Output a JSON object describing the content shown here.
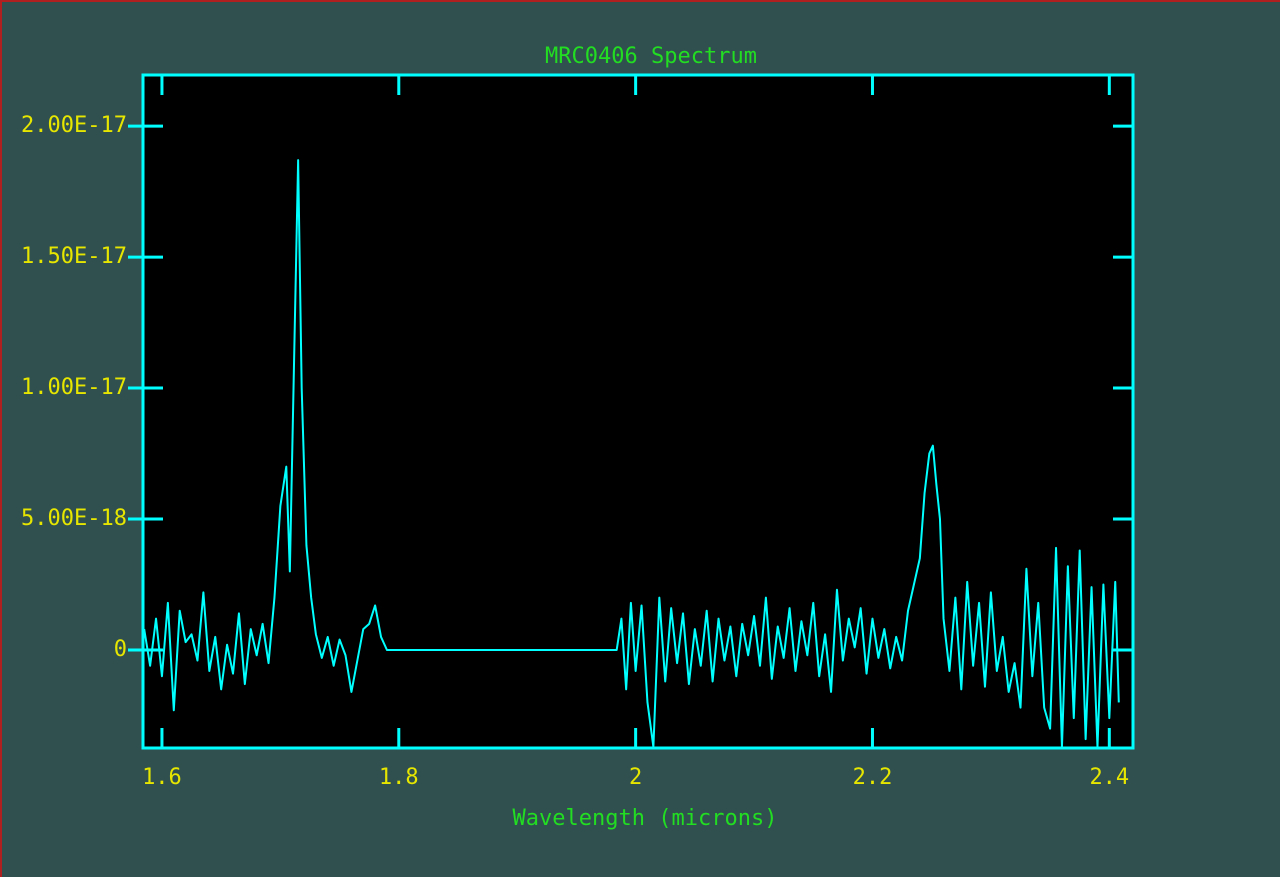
{
  "chart_data": {
    "type": "line",
    "title": "MRC0406 Spectrum",
    "x_label": "Wavelength (microns)",
    "color": "#00ffff",
    "xlim": [
      1.584,
      2.42
    ],
    "ylim": [
      -3.74e-18,
      2.195e-17
    ],
    "xticks": [
      1.6,
      1.8,
      2,
      2.2,
      2.4
    ],
    "yticks": [
      0,
      {
        "value": 5e-18,
        "label": "5.00E-18"
      },
      {
        "value": 1e-17,
        "label": "1.00E-17"
      },
      {
        "value": 1.5e-17,
        "label": "1.50E-17"
      },
      {
        "value": 2e-17,
        "label": "2.00E-17"
      }
    ],
    "grid": false,
    "x": [
      1.585,
      1.59,
      1.595,
      1.6,
      1.605,
      1.61,
      1.615,
      1.62,
      1.625,
      1.63,
      1.635,
      1.64,
      1.645,
      1.65,
      1.655,
      1.66,
      1.665,
      1.67,
      1.675,
      1.68,
      1.685,
      1.69,
      1.695,
      1.7,
      1.705,
      1.708,
      1.712,
      1.715,
      1.718,
      1.722,
      1.726,
      1.73,
      1.735,
      1.74,
      1.745,
      1.75,
      1.755,
      1.76,
      1.765,
      1.77,
      1.775,
      1.78,
      1.785,
      1.79,
      1.85,
      1.92,
      1.984,
      1.988,
      1.992,
      1.996,
      2.0,
      2.005,
      2.01,
      2.015,
      2.02,
      2.025,
      2.03,
      2.035,
      2.04,
      2.045,
      2.05,
      2.055,
      2.06,
      2.065,
      2.07,
      2.075,
      2.08,
      2.085,
      2.09,
      2.095,
      2.1,
      2.105,
      2.11,
      2.115,
      2.12,
      2.125,
      2.13,
      2.135,
      2.14,
      2.145,
      2.15,
      2.155,
      2.16,
      2.165,
      2.17,
      2.175,
      2.18,
      2.185,
      2.19,
      2.195,
      2.2,
      2.205,
      2.21,
      2.215,
      2.22,
      2.225,
      2.23,
      2.235,
      2.24,
      2.244,
      2.248,
      2.251,
      2.254,
      2.257,
      2.26,
      2.265,
      2.27,
      2.275,
      2.28,
      2.285,
      2.29,
      2.295,
      2.3,
      2.305,
      2.31,
      2.315,
      2.32,
      2.325,
      2.33,
      2.335,
      2.34,
      2.345,
      2.35,
      2.355,
      2.36,
      2.365,
      2.37,
      2.375,
      2.38,
      2.385,
      2.39,
      2.395,
      2.4,
      2.405,
      2.408
    ],
    "values": [
      8e-19,
      -6e-19,
      1.2e-18,
      -1e-18,
      1.8e-18,
      -2.3e-18,
      1.5e-18,
      3e-19,
      6e-19,
      -4e-19,
      2.2e-18,
      -8e-19,
      5e-19,
      -1.5e-18,
      2e-19,
      -9e-19,
      1.4e-18,
      -1.3e-18,
      8e-19,
      -2e-19,
      1e-18,
      -5e-19,
      2e-18,
      5.5e-18,
      7e-18,
      3e-18,
      1.2e-17,
      1.87e-17,
      1e-17,
      4e-18,
      2e-18,
      6e-19,
      -3e-19,
      5e-19,
      -6e-19,
      4e-19,
      -2e-19,
      -1.6e-18,
      -4e-19,
      8e-19,
      1e-18,
      1.7e-18,
      5e-19,
      0,
      0,
      0,
      0,
      1.2e-18,
      -1.5e-18,
      1.8e-18,
      -8e-19,
      1.7e-18,
      -2e-18,
      -3.7e-18,
      2e-18,
      -1.2e-18,
      1.6e-18,
      -5e-19,
      1.4e-18,
      -1.3e-18,
      8e-19,
      -6e-19,
      1.5e-18,
      -1.2e-18,
      1.2e-18,
      -4e-19,
      9e-19,
      -1e-18,
      1e-18,
      -2e-19,
      1.3e-18,
      -6e-19,
      2e-18,
      -1.1e-18,
      9e-19,
      -3e-19,
      1.6e-18,
      -8e-19,
      1.1e-18,
      -2e-19,
      1.8e-18,
      -1e-18,
      6e-19,
      -1.6e-18,
      2.3e-18,
      -4e-19,
      1.2e-18,
      1e-19,
      1.6e-18,
      -9e-19,
      1.2e-18,
      -3e-19,
      8e-19,
      -7e-19,
      5e-19,
      -4e-19,
      1.5e-18,
      2.5e-18,
      3.5e-18,
      6e-18,
      7.5e-18,
      7.8e-18,
      6.3e-18,
      5e-18,
      1.2e-18,
      -8e-19,
      2e-18,
      -1.5e-18,
      2.6e-18,
      -6e-19,
      1.8e-18,
      -1.4e-18,
      2.2e-18,
      -8e-19,
      5e-19,
      -1.6e-18,
      -5e-19,
      -2.2e-18,
      3.1e-18,
      -1e-18,
      1.8e-18,
      -2.2e-18,
      -3e-18,
      3.9e-18,
      -3.7e-18,
      3.2e-18,
      -2.6e-18,
      3.8e-18,
      -3.4e-18,
      2.4e-18,
      -3.7e-18,
      2.5e-18,
      -2.6e-18,
      2.6e-18,
      -2e-18
    ]
  }
}
